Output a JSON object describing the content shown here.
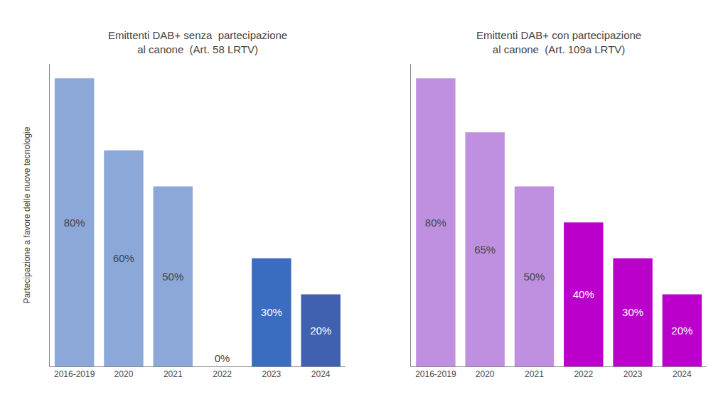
{
  "chart_data": [
    {
      "type": "bar",
      "title": "Emittenti DAB+ senza  partecipazione\nal canone  (Art. 58 LRTV)",
      "ylabel": "Partecipazione a favore delle nuove tecnologie",
      "categories": [
        "2016-2019",
        "2020",
        "2021",
        "2022",
        "2023",
        "2024"
      ],
      "values": [
        80,
        60,
        50,
        0,
        30,
        20
      ],
      "value_labels": [
        "80%",
        "60%",
        "50%",
        "0%",
        "30%",
        "20%"
      ],
      "colors": [
        "#8BA8D8",
        "#8BA8D8",
        "#8BA8D8",
        null,
        "#3A6CBF",
        "#4060B0"
      ],
      "ylim": [
        0,
        84
      ],
      "grid": false,
      "data_labels": true,
      "tick_labels": "x"
    },
    {
      "type": "bar",
      "title": "Emittenti DAB+ con partecipazione\nal canone  (Art. 109a LRTV)",
      "categories": [
        "2016-2019",
        "2020",
        "2021",
        "2022",
        "2023",
        "2024"
      ],
      "values": [
        80,
        65,
        50,
        40,
        30,
        20
      ],
      "value_labels": [
        "80%",
        "65%",
        "50%",
        "40%",
        "30%",
        "20%"
      ],
      "colors": [
        "#C090E0",
        "#C090E0",
        "#C090E0",
        "#BB00CC",
        "#BB00CC",
        "#BB00CC"
      ],
      "ylim": [
        0,
        84
      ],
      "grid": false,
      "data_labels": true,
      "tick_labels": "x"
    }
  ]
}
